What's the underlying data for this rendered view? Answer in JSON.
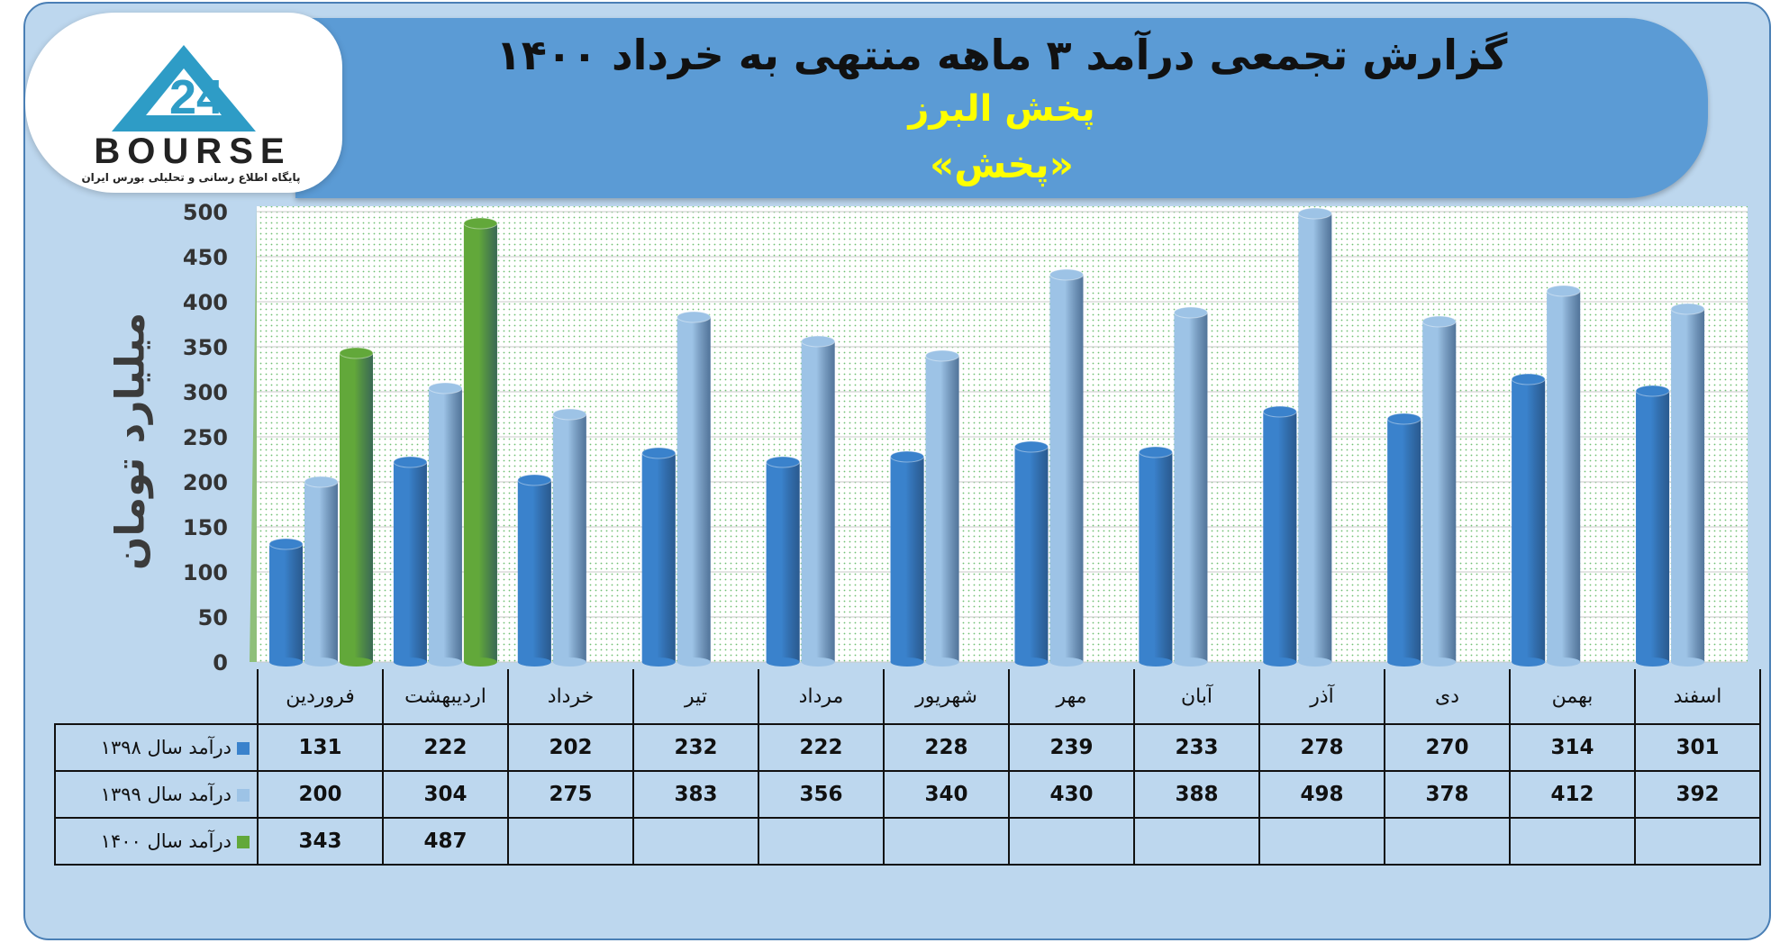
{
  "header": {
    "title": "گزارش تجمعی درآمد ۳ ماهه منتهی به خرداد ۱۴۰۰",
    "company": "پخش البرز",
    "symbol": "«پخش»"
  },
  "logo": {
    "text": "BOURSE",
    "subtitle": "پایگاه اطلاع رسانی و تحلیلی بورس ایران"
  },
  "colors": {
    "series_1398": "#3a82cc",
    "series_1399": "#9dc3e6",
    "series_1400": "#62a83a",
    "banner": "#5b9bd5",
    "title_accent": "#ffff00"
  },
  "chart_data": {
    "type": "bar",
    "ylabel": "میلیارد تومان",
    "ylim": [
      0,
      500
    ],
    "yticks": [
      0,
      50,
      100,
      150,
      200,
      250,
      300,
      350,
      400,
      450,
      500
    ],
    "grid": true,
    "categories": [
      "فروردین",
      "اردیبهشت",
      "خرداد",
      "تیر",
      "مرداد",
      "شهریور",
      "مهر",
      "آبان",
      "آذر",
      "دی",
      "بهمن",
      "اسفند"
    ],
    "series": [
      {
        "name": "درآمد سال ۱۳۹۸",
        "values": [
          131,
          222,
          202,
          232,
          222,
          228,
          239,
          233,
          278,
          270,
          314,
          301
        ]
      },
      {
        "name": "درآمد سال ۱۳۹۹",
        "values": [
          200,
          304,
          275,
          383,
          356,
          340,
          430,
          388,
          498,
          378,
          412,
          392
        ]
      },
      {
        "name": "درآمد سال ۱۴۰۰",
        "values": [
          343,
          487,
          null,
          null,
          null,
          null,
          null,
          null,
          null,
          null,
          null,
          null
        ]
      }
    ]
  }
}
